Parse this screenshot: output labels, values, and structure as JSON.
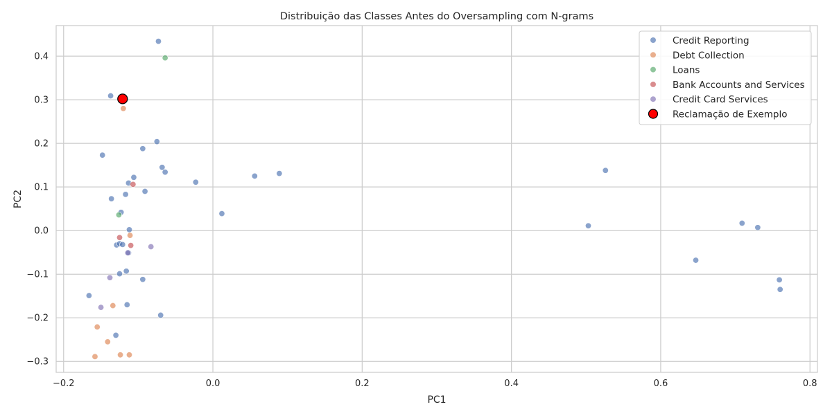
{
  "chart_data": {
    "type": "scatter",
    "title": "Distribuição das Classes Antes do Oversampling com N-grams",
    "xlabel": "PC1",
    "ylabel": "PC2",
    "xlim": [
      -0.21,
      0.81
    ],
    "ylim": [
      -0.325,
      0.47
    ],
    "xticks": [
      -0.2,
      0.0,
      0.2,
      0.4,
      0.6,
      0.8
    ],
    "xtick_labels": [
      "−0.2",
      "0.0",
      "0.2",
      "0.4",
      "0.6",
      "0.8"
    ],
    "yticks": [
      -0.3,
      -0.2,
      -0.1,
      0.0,
      0.1,
      0.2,
      0.3,
      0.4
    ],
    "ytick_labels": [
      "−0.3",
      "−0.2",
      "−0.1",
      "0.0",
      "0.1",
      "0.2",
      "0.3",
      "0.4"
    ],
    "grid": true,
    "legend_position": "top-right",
    "series": [
      {
        "name": "Credit Reporting",
        "color": "#4c72b0",
        "points": [
          [
            -0.073,
            0.434
          ],
          [
            -0.137,
            0.309
          ],
          [
            -0.148,
            0.173
          ],
          [
            -0.075,
            0.204
          ],
          [
            -0.094,
            0.188
          ],
          [
            -0.068,
            0.145
          ],
          [
            -0.064,
            0.134
          ],
          [
            -0.106,
            0.122
          ],
          [
            -0.113,
            0.109
          ],
          [
            -0.091,
            0.09
          ],
          [
            -0.117,
            0.083
          ],
          [
            -0.136,
            0.073
          ],
          [
            -0.123,
            0.042
          ],
          [
            -0.023,
            0.111
          ],
          [
            0.012,
            0.039
          ],
          [
            0.056,
            0.125
          ],
          [
            0.089,
            0.131
          ],
          [
            -0.112,
            0.002
          ],
          [
            -0.129,
            -0.033
          ],
          [
            -0.125,
            -0.03
          ],
          [
            -0.121,
            -0.032
          ],
          [
            -0.113,
            -0.051
          ],
          [
            -0.116,
            -0.093
          ],
          [
            -0.125,
            -0.099
          ],
          [
            -0.094,
            -0.112
          ],
          [
            -0.166,
            -0.149
          ],
          [
            -0.115,
            -0.17
          ],
          [
            -0.07,
            -0.194
          ],
          [
            -0.13,
            -0.24
          ],
          [
            0.503,
            0.011
          ],
          [
            0.526,
            0.138
          ],
          [
            0.647,
            -0.068
          ],
          [
            0.709,
            0.017
          ],
          [
            0.73,
            0.007
          ],
          [
            0.759,
            -0.113
          ],
          [
            0.76,
            -0.135
          ]
        ]
      },
      {
        "name": "Debt Collection",
        "color": "#dd8452",
        "points": [
          [
            -0.12,
            0.28
          ],
          [
            -0.111,
            -0.011
          ],
          [
            -0.134,
            -0.172
          ],
          [
            -0.155,
            -0.221
          ],
          [
            -0.141,
            -0.255
          ],
          [
            -0.158,
            -0.289
          ],
          [
            -0.124,
            -0.285
          ],
          [
            -0.112,
            -0.285
          ]
        ]
      },
      {
        "name": "Loans",
        "color": "#55a868",
        "points": [
          [
            -0.064,
            0.396
          ],
          [
            -0.126,
            0.036
          ]
        ]
      },
      {
        "name": "Bank Accounts and Services",
        "color": "#c44e52",
        "points": [
          [
            -0.107,
            0.106
          ],
          [
            -0.125,
            -0.016
          ],
          [
            -0.11,
            -0.034
          ]
        ]
      },
      {
        "name": "Credit Card Services",
        "color": "#8172b3",
        "points": [
          [
            -0.083,
            -0.037
          ],
          [
            -0.114,
            -0.051
          ],
          [
            -0.138,
            -0.108
          ],
          [
            -0.15,
            -0.176
          ]
        ]
      }
    ],
    "highlight": {
      "name": "Reclamação de Exemplo",
      "color": "#ff0000",
      "edgecolor": "#000000",
      "point": [
        -0.121,
        0.302
      ]
    }
  }
}
